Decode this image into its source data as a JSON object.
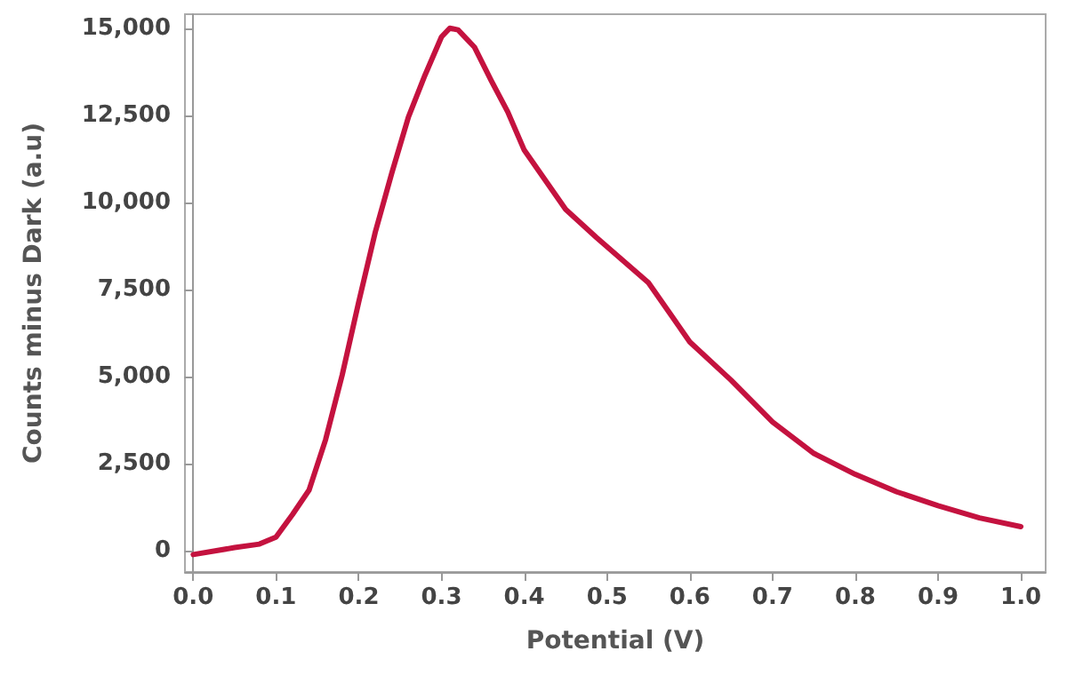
{
  "chart_data": {
    "type": "line",
    "xlabel": "Potential (V)",
    "ylabel": "Counts minus Dark (a.u)",
    "x": [
      0.0,
      0.05,
      0.08,
      0.1,
      0.12,
      0.14,
      0.16,
      0.18,
      0.2,
      0.22,
      0.24,
      0.26,
      0.28,
      0.3,
      0.31,
      0.32,
      0.34,
      0.36,
      0.38,
      0.4,
      0.45,
      0.487,
      0.55,
      0.6,
      0.65,
      0.7,
      0.75,
      0.8,
      0.85,
      0.9,
      0.95,
      1.0
    ],
    "series": [
      {
        "color": "#c4123f",
        "values": [
          -100,
          100,
          200,
          400,
          1050,
          1750,
          3200,
          5050,
          7150,
          9150,
          10850,
          12450,
          13650,
          14750,
          15000,
          14950,
          14450,
          13500,
          12600,
          11500,
          9800,
          9000,
          7700,
          6000,
          4900,
          3700,
          2800,
          2200,
          1700,
          1300,
          950,
          700
        ]
      }
    ],
    "xlim": [
      -0.01,
      1.03
    ],
    "xticks": [
      {
        "value": 0,
        "label": "0.0"
      },
      0.1,
      0.2,
      0.3,
      0.4,
      0.5,
      0.6,
      0.7,
      0.8,
      0.9,
      {
        "value": 1,
        "label": "1.0"
      }
    ],
    "ylim": [
      -600,
      15400
    ],
    "yticks": [
      0,
      {
        "value": 2500,
        "label": "2,500"
      },
      {
        "value": 5000,
        "label": "5,000"
      },
      {
        "value": 7500,
        "label": "7,500"
      },
      {
        "value": 10000,
        "label": "10,000"
      },
      {
        "value": 12500,
        "label": "12,500"
      },
      {
        "value": 15000,
        "label": "15,000"
      }
    ],
    "marker": "none",
    "line_style": "solid"
  }
}
